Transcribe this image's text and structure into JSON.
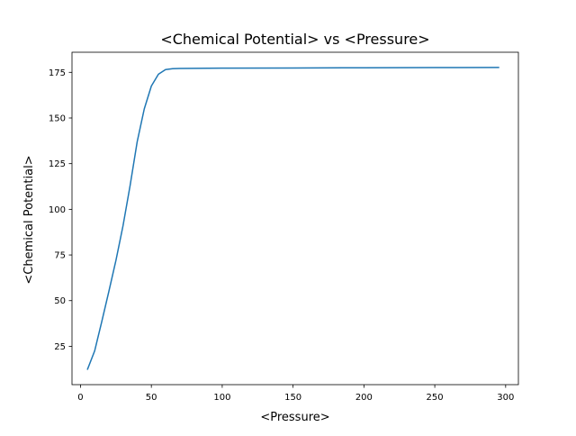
{
  "chart_data": {
    "type": "line",
    "title": "<Chemical Potential> vs <Pressure>",
    "xlabel": "<Pressure>",
    "ylabel": "<Chemical Potential>",
    "xlim": [
      -6,
      309
    ],
    "ylim": [
      4,
      186
    ],
    "xticks": [
      0,
      50,
      100,
      150,
      200,
      250,
      300
    ],
    "yticks": [
      25,
      50,
      75,
      100,
      125,
      150,
      175
    ],
    "grid": false,
    "series": [
      {
        "color": "#1f77b4",
        "x": [
          5,
          10,
          15,
          20,
          25,
          30,
          35,
          40,
          45,
          50,
          55,
          60,
          65,
          70,
          80,
          100,
          150,
          200,
          250,
          295
        ],
        "y": [
          12.5,
          22.5,
          38.5,
          55,
          72,
          91,
          113,
          137,
          155,
          167.5,
          174,
          176.5,
          177,
          177.1,
          177.2,
          177.3,
          177.4,
          177.5,
          177.6,
          177.7
        ]
      }
    ]
  }
}
